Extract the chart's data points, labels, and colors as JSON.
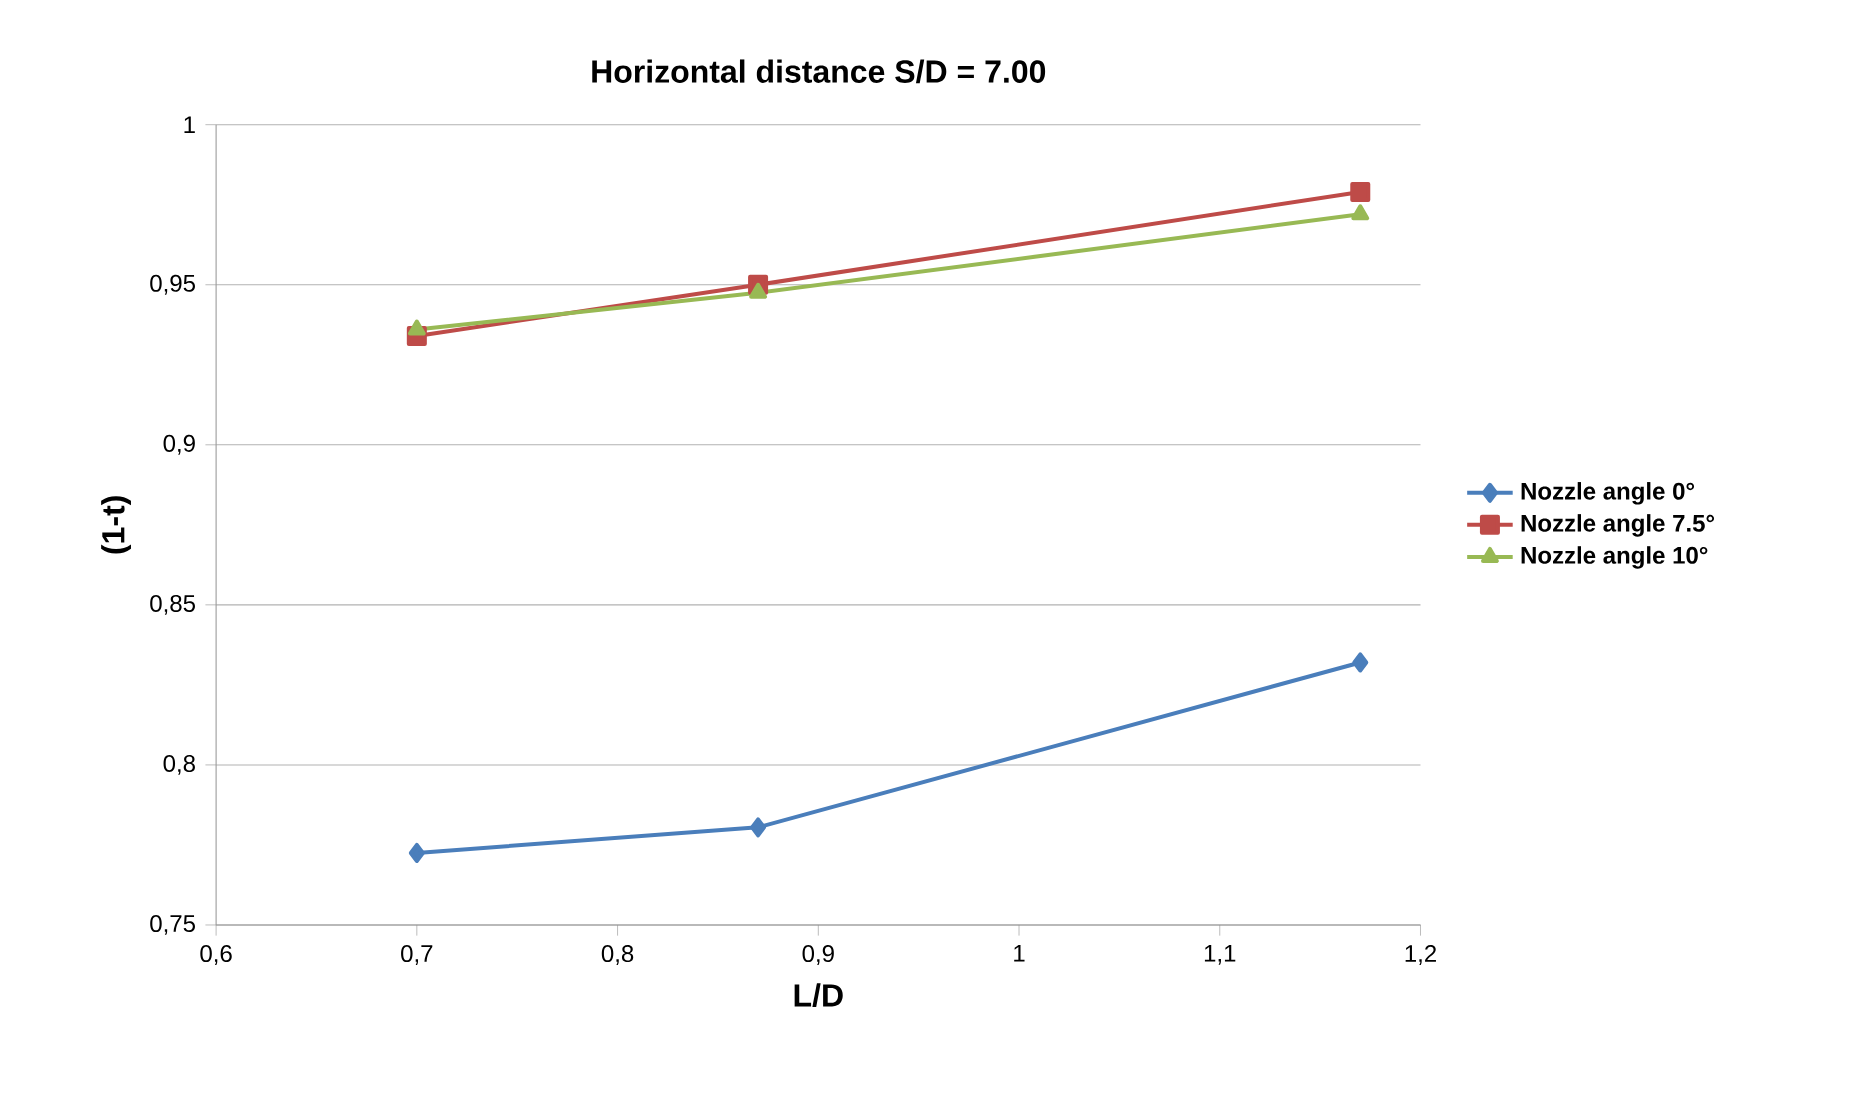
{
  "chart_data": {
    "type": "line",
    "title": "Horizontal distance S/D = 7.00",
    "xlabel": "L/D",
    "ylabel": "(1-t)",
    "x": [
      0.7,
      0.87,
      1.17
    ],
    "series": [
      {
        "name": "Nozzle angle 0°",
        "color": "#4a7ebb",
        "marker": "diamond",
        "values": [
          0.7725,
          0.7805,
          0.832
        ]
      },
      {
        "name": "Nozzle angle 7.5°",
        "color": "#be4b48",
        "marker": "square",
        "values": [
          0.934,
          0.95,
          0.979
        ]
      },
      {
        "name": "Nozzle angle 10°",
        "color": "#98b954",
        "marker": "triangle",
        "values": [
          0.936,
          0.9475,
          0.972
        ]
      }
    ],
    "xlim": [
      0.6,
      1.2
    ],
    "xticks": [
      {
        "value": 0.6,
        "label": "0,6"
      },
      {
        "value": 0.7,
        "label": "0,7"
      },
      {
        "value": 0.8,
        "label": "0,8"
      },
      {
        "value": 0.9,
        "label": "0,9"
      },
      1,
      {
        "value": 1.1,
        "label": "1,1"
      },
      {
        "value": 1.2,
        "label": "1,2"
      }
    ],
    "ylim": [
      0.75,
      1
    ],
    "yticks": [
      {
        "value": 0.75,
        "label": "0,75"
      },
      {
        "value": 0.8,
        "label": "0,8"
      },
      {
        "value": 0.85,
        "label": "0,85"
      },
      {
        "value": 0.9,
        "label": "0,9"
      },
      {
        "value": 0.95,
        "label": "0,95"
      },
      1
    ],
    "grid": "y",
    "legend": "right",
    "line_style": "solid"
  }
}
